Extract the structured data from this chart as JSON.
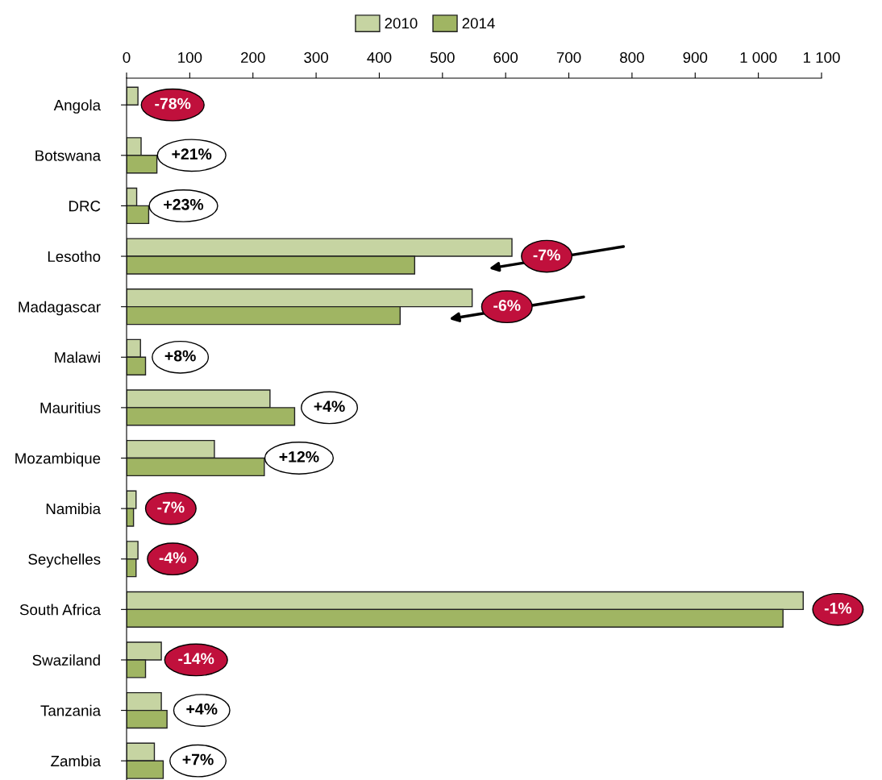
{
  "chart_data": {
    "type": "bar",
    "orientation": "horizontal",
    "categories": [
      "Angola",
      "Botswana",
      "DRC",
      "Lesotho",
      "Madagascar",
      "Malawi",
      "Mauritius",
      "Mozambique",
      "Namibia",
      "Seychelles",
      "South Africa",
      "Swaziland",
      "Tanzania",
      "Zambia"
    ],
    "series": [
      {
        "name": "2010",
        "color": "#c6d4a2",
        "values": [
          18,
          23,
          16,
          610,
          547,
          22,
          227,
          139,
          15,
          18,
          1071,
          55,
          55,
          44
        ]
      },
      {
        "name": "2014",
        "color": "#a0b563",
        "values": [
          null,
          48,
          35,
          456,
          433,
          30,
          266,
          218,
          11,
          15,
          1039,
          30,
          64,
          58
        ]
      }
    ],
    "xlim": [
      0,
      1100
    ],
    "xticks": [
      0,
      100,
      200,
      300,
      400,
      500,
      600,
      700,
      800,
      900,
      {
        "value": 1000,
        "label": "1 000"
      },
      {
        "value": 1100,
        "label": "1 100"
      }
    ],
    "grid": false,
    "legend": "top",
    "annotations": [
      "-78%",
      "+21%",
      "+23%",
      "-7%",
      "-6%",
      "+8%",
      "+4%",
      "+12%",
      "-7%",
      "-4%",
      "-1%",
      "-14%",
      "+4%",
      "+7%"
    ]
  }
}
